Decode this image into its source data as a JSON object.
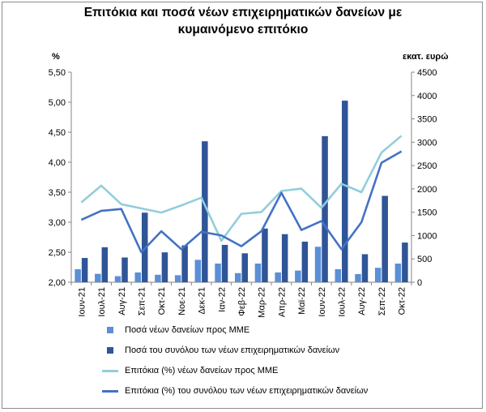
{
  "chart_data": {
    "type": "bar",
    "title": "Επιτόκια και ποσά νέων επιχειρηματικών δανείων με κυμαινόμενο επιτόκιο",
    "left_axis_unit": "%",
    "right_axis_unit": "εκατ. ευρώ",
    "categories": [
      "Ιουν-21",
      "Ιουλ-21",
      "Αυγ-21",
      "Σεπ-21",
      "Οκτ-21",
      "Νοε-21",
      "Δεκ-21",
      "Ιαν-22",
      "Φεβ-22",
      "Μαρ-22",
      "Απρ-22",
      "Μαϊ-22",
      "Ιουν-22",
      "Ιουλ-22",
      "Αυγ-22",
      "Σεπ-22",
      "Οκτ-22"
    ],
    "left_axis": {
      "min": 2.0,
      "max": 5.5,
      "ticks": [
        "2,00",
        "2,50",
        "3,00",
        "3,50",
        "4,00",
        "4,50",
        "5,00",
        "5,50"
      ]
    },
    "right_axis": {
      "min": 0,
      "max": 4500,
      "ticks": [
        "0",
        "500",
        "1000",
        "1500",
        "2000",
        "2500",
        "3000",
        "3500",
        "4000",
        "4500"
      ]
    },
    "bar_series": [
      {
        "name": "Ποσά νέων δανείων προς ΜΜΕ",
        "color": "#5b8fd6",
        "axis": "right",
        "values": [
          280,
          180,
          130,
          210,
          160,
          150,
          480,
          400,
          195,
          400,
          210,
          250,
          760,
          280,
          175,
          310,
          400
        ]
      },
      {
        "name": "Ποσά του συνόλου των νέων επιχειρηματικών δανείων",
        "color": "#2f5597",
        "axis": "right",
        "values": [
          520,
          750,
          530,
          1490,
          640,
          790,
          3020,
          800,
          620,
          1150,
          1030,
          870,
          3130,
          3890,
          600,
          1850,
          850
        ]
      }
    ],
    "line_series": [
      {
        "name": "Επιτόκια (%) νέων δανείων προς ΜΜΕ",
        "color": "#92cddc",
        "axis": "left",
        "values": [
          3.33,
          3.61,
          3.3,
          3.23,
          3.16,
          3.28,
          3.41,
          2.69,
          3.14,
          3.17,
          3.52,
          3.56,
          3.24,
          3.64,
          3.5,
          4.16,
          4.44
        ]
      },
      {
        "name": "Επιτόκια (%) του συνόλου των νέων επιχειρηματικών δανείων",
        "color": "#4472c4",
        "axis": "left",
        "values": [
          3.04,
          3.19,
          3.22,
          2.5,
          2.85,
          2.55,
          2.84,
          2.78,
          2.6,
          2.85,
          3.49,
          2.87,
          3.02,
          2.55,
          3.0,
          3.99,
          4.18
        ]
      }
    ],
    "grid": false,
    "legend_position": "bottom"
  }
}
